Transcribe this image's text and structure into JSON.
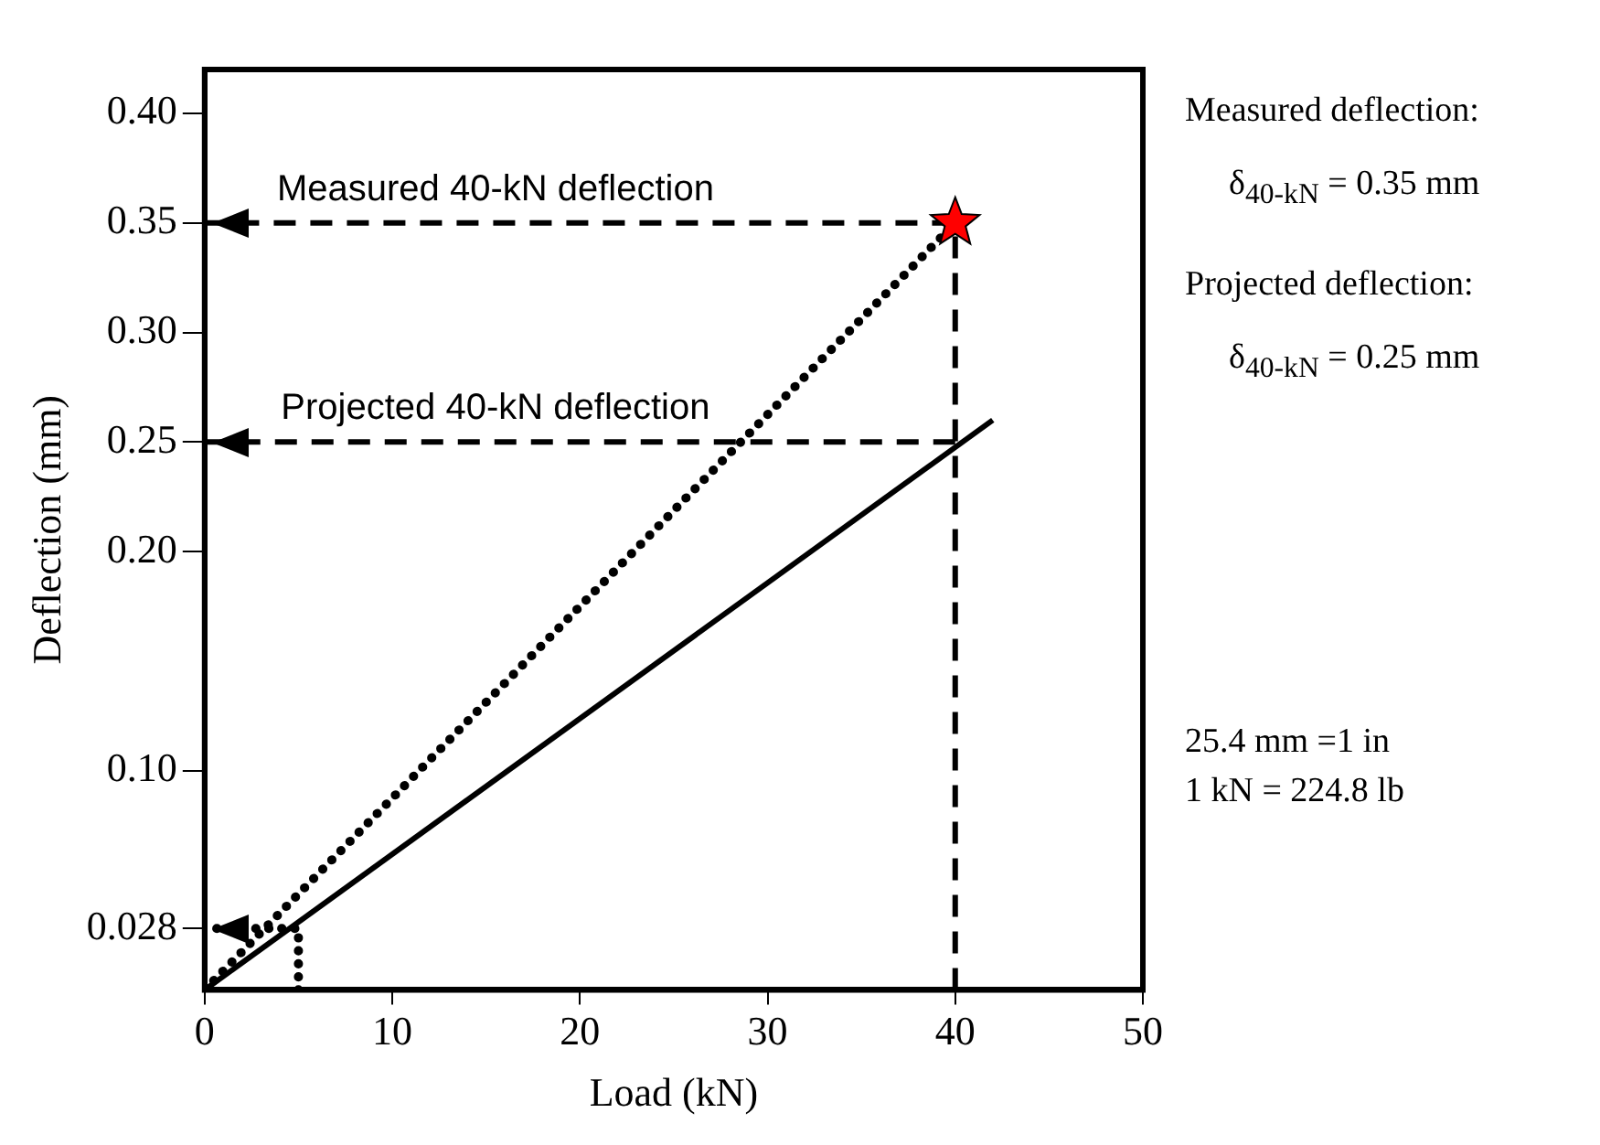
{
  "chart_data": {
    "type": "line",
    "xlabel": "Load (kN)",
    "ylabel": "Deflection (mm)",
    "xlim": [
      0,
      50
    ],
    "xticks": [
      0,
      10,
      20,
      30,
      40,
      50
    ],
    "ylim": [
      0,
      0.42
    ],
    "yticks": [
      0.028,
      {
        "value": 0.1,
        "label": "0.10"
      },
      {
        "value": 0.2,
        "label": "0.20"
      },
      0.25,
      {
        "value": 0.3,
        "label": "0.30"
      },
      0.35,
      {
        "value": 0.4,
        "label": "0.40"
      }
    ],
    "grid": false,
    "legend": false,
    "series": [
      {
        "color": "#000000",
        "x": [
          0,
          42
        ],
        "values": [
          0,
          0.26
        ],
        "line_style": "solid",
        "marker": "none"
      },
      {
        "color": "#000000",
        "x": [
          0,
          40
        ],
        "values": [
          0,
          0.35
        ],
        "line_style": "dotted",
        "marker": "none"
      },
      {
        "color": "#000000",
        "x": [
          40,
          40,
          0
        ],
        "values": [
          0,
          0.35,
          0.35
        ],
        "line_style": "dashed",
        "marker": "none"
      },
      {
        "color": "#000000",
        "x": [
          40,
          0
        ],
        "values": [
          0.25,
          0.25
        ],
        "line_style": "dashed",
        "marker": "none"
      },
      {
        "color": "#000000",
        "x": [
          5,
          5,
          0
        ],
        "values": [
          0,
          0.028,
          0.028
        ],
        "line_style": "dotted",
        "marker": "none"
      },
      {
        "type": "scatter",
        "color": "#ff0000",
        "x": [
          40
        ],
        "values": [
          0.35
        ],
        "marker": "star"
      }
    ],
    "annotations": [
      {
        "text": "Measured 40-kN deflection",
        "x": 15.5,
        "y": 0.35
      },
      {
        "text": "Projected 40-kN deflection",
        "x": 15.5,
        "y": 0.25
      },
      "Measured deflection:",
      "δ$_{40-kN}$ = 0.35 mm",
      "Projected deflection:",
      "δ$_{40-kN}$ = 0.25 mm",
      "25.4 mm =1 in",
      "1 kN = 224.8 lb"
    ]
  }
}
